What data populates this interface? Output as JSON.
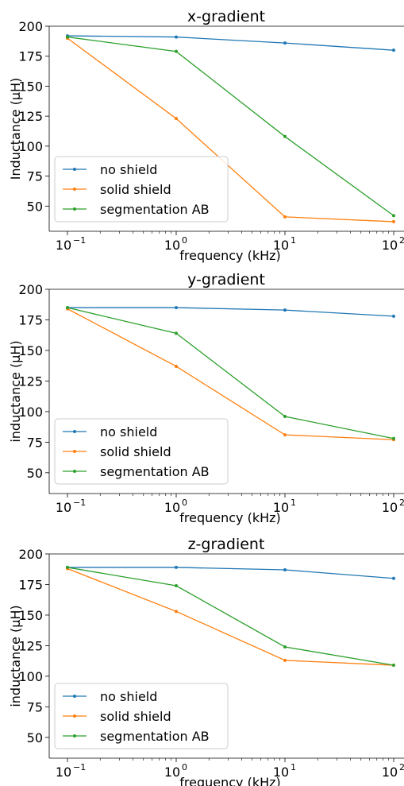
{
  "colors": {
    "no_shield": "#1f77b4",
    "solid_shield": "#ff7f0e",
    "segmentation_ab": "#2ca02c"
  },
  "chart_data": [
    {
      "type": "line",
      "title": "x-gradient",
      "xlabel": "frequency (kHz)",
      "ylabel": "Inductance (μH)",
      "xscale": "log",
      "x": [
        0.1,
        1,
        10,
        100
      ],
      "xtick_labels": [
        "10",
        "10",
        "10",
        "10"
      ],
      "xtick_exponents": [
        "−1",
        "0",
        "1",
        "2"
      ],
      "yticks": [
        "200",
        "175",
        "150",
        "125",
        "100",
        "75",
        "50"
      ],
      "ylim": [
        29,
        200
      ],
      "legend_position": "lower-left",
      "grid": false,
      "series": [
        {
          "name": "no shield",
          "color": "#1f77b4",
          "values": [
            192,
            191,
            186,
            180
          ]
        },
        {
          "name": "solid shield",
          "color": "#ff7f0e",
          "values": [
            190,
            123,
            41,
            37
          ]
        },
        {
          "name": "segmentation AB",
          "color": "#2ca02c",
          "values": [
            191,
            179,
            108,
            42
          ]
        }
      ]
    },
    {
      "type": "line",
      "title": "y-gradient",
      "xlabel": "frequency (kHz)",
      "ylabel": "inductance (μH)",
      "xscale": "log",
      "x": [
        0.1,
        1,
        10,
        100
      ],
      "xtick_labels": [
        "10",
        "10",
        "10",
        "10"
      ],
      "xtick_exponents": [
        "−1",
        "0",
        "1",
        "2"
      ],
      "yticks": [
        "200",
        "175",
        "150",
        "125",
        "100",
        "75",
        "50"
      ],
      "ylim": [
        33,
        200
      ],
      "legend_position": "lower-left",
      "grid": false,
      "series": [
        {
          "name": "no shield",
          "color": "#1f77b4",
          "values": [
            185,
            185,
            183,
            178
          ]
        },
        {
          "name": "solid shield",
          "color": "#ff7f0e",
          "values": [
            184,
            137,
            81,
            77
          ]
        },
        {
          "name": "segmentation AB",
          "color": "#2ca02c",
          "values": [
            185,
            164,
            96,
            78
          ]
        }
      ]
    },
    {
      "type": "line",
      "title": "z-gradient",
      "xlabel": "frequency (kHz)",
      "ylabel": "inductance (μH)",
      "xscale": "log",
      "x": [
        0.1,
        1,
        10,
        100
      ],
      "xtick_labels": [
        "10",
        "10",
        "10",
        "10"
      ],
      "xtick_exponents": [
        "−1",
        "0",
        "1",
        "2"
      ],
      "yticks": [
        "200",
        "175",
        "150",
        "125",
        "100",
        "75",
        "50"
      ],
      "ylim": [
        33,
        200
      ],
      "legend_position": "lower-left",
      "grid": false,
      "series": [
        {
          "name": "no shield",
          "color": "#1f77b4",
          "values": [
            189,
            189,
            187,
            180
          ]
        },
        {
          "name": "solid shield",
          "color": "#ff7f0e",
          "values": [
            188,
            153,
            113,
            109
          ]
        },
        {
          "name": "segmentation AB",
          "color": "#2ca02c",
          "values": [
            189,
            174,
            124,
            109
          ]
        }
      ]
    }
  ]
}
